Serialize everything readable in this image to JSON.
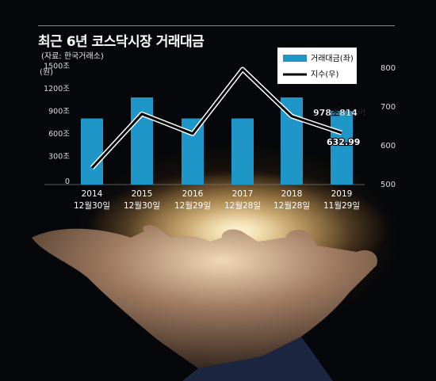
{
  "title": "최근 6년 코스닥시장 거래대금",
  "source": "(자료: 한국거래소)",
  "chart_data": {
    "type": "bar",
    "categories": [
      "2014\n12월30일",
      "2015\n12월30일",
      "2016\n12월29일",
      "2017\n12월28일",
      "2018\n12월28일",
      "2019\n11월29일"
    ],
    "category_year": [
      "2014",
      "2015",
      "2016",
      "2017",
      "2018",
      "2019"
    ],
    "category_date": [
      "12월30일",
      "12월30일",
      "12월29일",
      "12월28일",
      "12월28일",
      "11월29일"
    ],
    "series": [
      {
        "name": "거래대금(좌)",
        "axis": "left",
        "type": "bar",
        "values": [
          880,
          1160,
          880,
          880,
          1160,
          978.814
        ]
      },
      {
        "name": "지수(우)",
        "axis": "right",
        "type": "line",
        "values": [
          543,
          682,
          631,
          797,
          676,
          632.99
        ]
      }
    ],
    "left_axis": {
      "unit": "(원)",
      "ticks": [
        "0",
        "300조",
        "600조",
        "900조",
        "1200조",
        "1500조"
      ],
      "tick_values": [
        0,
        300,
        600,
        900,
        1200,
        1500
      ],
      "ylim": [
        0,
        1550
      ]
    },
    "right_axis": {
      "ticks": [
        "500",
        "600",
        "700",
        "800"
      ],
      "tick_values": [
        500,
        600,
        700,
        800
      ],
      "ylim": [
        500,
        800
      ]
    },
    "annotations": [
      {
        "text": "978조814억",
        "series": 0,
        "index": 5
      },
      {
        "text": "632.99",
        "series": 1,
        "index": 5
      }
    ],
    "legend_position": "top-right",
    "bar_color": "#1e96c8",
    "line_color": "#000000",
    "grid": false
  }
}
